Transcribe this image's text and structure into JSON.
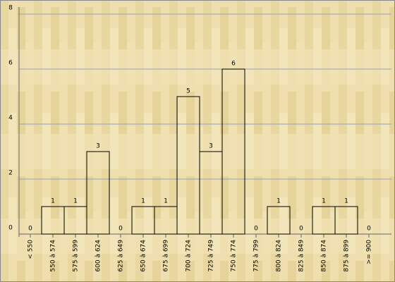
{
  "chart_data": {
    "type": "bar",
    "categories": [
      "< 550",
      "550 à 574",
      "575 à 599",
      "600 à 624",
      "625 à 649",
      "650 à 674",
      "675 à 699",
      "700 à 724",
      "725 à 749",
      "750 à 774",
      "775 à 799",
      "800 à 824",
      "825 à 849",
      "850 à 874",
      "875 à 899",
      ">= 900"
    ],
    "values": [
      0,
      1,
      1,
      3,
      0,
      1,
      1,
      5,
      3,
      6,
      0,
      1,
      0,
      1,
      1,
      0
    ],
    "color": "#000000",
    "ylim": [
      0,
      8
    ],
    "yticks": [
      0,
      2,
      4,
      6,
      8
    ],
    "grid": true
  }
}
